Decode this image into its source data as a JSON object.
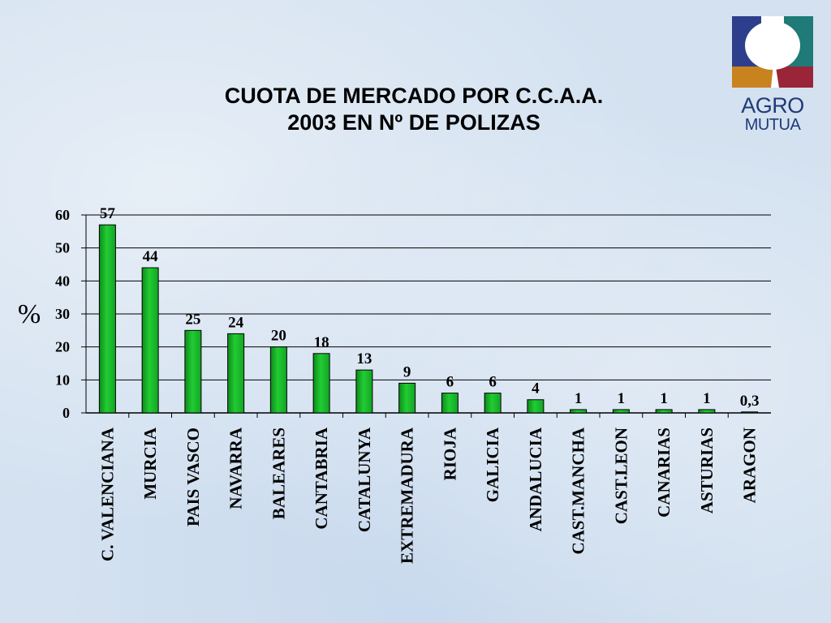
{
  "title": {
    "line1": "CUOTA DE MERCADO POR C.C.A.A.",
    "line2": "2003 EN Nº DE POLIZAS"
  },
  "logo": {
    "line1": "AGRO",
    "line2": "MUTUA"
  },
  "chart_data": {
    "type": "bar",
    "title": "CUOTA DE MERCADO POR C.C.A.A. 2003 EN Nº DE POLIZAS",
    "xlabel": "",
    "ylabel": "%",
    "ylim": [
      0,
      60
    ],
    "yticks": [
      0,
      10,
      20,
      30,
      40,
      50,
      60
    ],
    "grid": true,
    "legend": "none",
    "bar_color": "#22cc33",
    "categories": [
      "C. VALENCIANA",
      "MURCIA",
      "PAIS VASCO",
      "NAVARRA",
      "BALEARES",
      "CANTABRIA",
      "CATALUNYA",
      "EXTREMADURA",
      "RIOJA",
      "GALICIA",
      "ANDALUCIA",
      "CAST.MANCHA",
      "CAST.LEON",
      "CANARIAS",
      "ASTURIAS",
      "ARAGON"
    ],
    "values": [
      57,
      44,
      25,
      24,
      20,
      18,
      13,
      9,
      6,
      6,
      4,
      1,
      1,
      1,
      1,
      0.3
    ],
    "value_labels": [
      "57",
      "44",
      "25",
      "24",
      "20",
      "18",
      "13",
      "9",
      "6",
      "6",
      "4",
      "1",
      "1",
      "1",
      "1",
      "0,3"
    ]
  }
}
